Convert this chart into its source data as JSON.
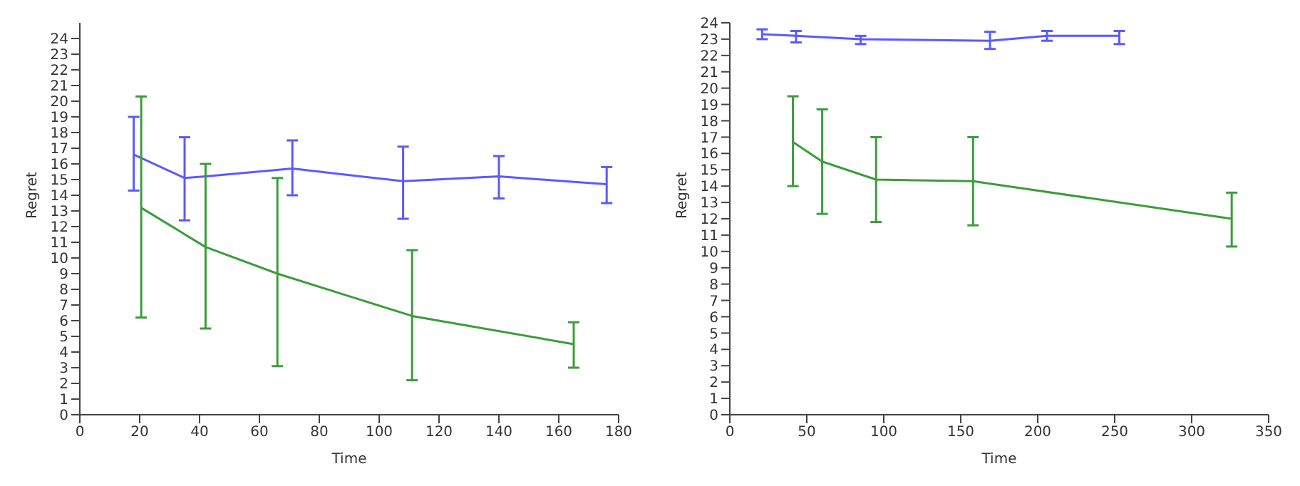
{
  "chart_data": [
    {
      "type": "line",
      "xlabel": "Time",
      "ylabel": "Regret",
      "xlim": [
        0,
        180
      ],
      "xticks": [
        0,
        20,
        40,
        60,
        80,
        100,
        120,
        140,
        160,
        180
      ],
      "ylim": [
        0,
        25
      ],
      "yticks": [
        0,
        1,
        2,
        3,
        4,
        5,
        6,
        7,
        8,
        9,
        10,
        11,
        12,
        13,
        14,
        15,
        16,
        17,
        18,
        19,
        20,
        21,
        22,
        23,
        24
      ],
      "grid": false,
      "marker": "none",
      "series": [
        {
          "color": "#5a5aff",
          "x": [
            18,
            35,
            42,
            71,
            108,
            140,
            176
          ],
          "values": [
            16.6,
            15.1,
            15.2,
            15.7,
            14.9,
            15.2,
            14.7
          ],
          "errors": [
            [
              14.3,
              19
            ],
            [
              12.4,
              17.7
            ],
            null,
            [
              14,
              17.5
            ],
            [
              12.5,
              17.1
            ],
            [
              13.8,
              16.5
            ],
            [
              13.5,
              15.8
            ]
          ]
        },
        {
          "color": "#3c9c3c",
          "x": [
            20.5,
            42,
            66,
            111,
            165
          ],
          "values": [
            13.2,
            10.7,
            9.0,
            6.3,
            4.5
          ],
          "errors": [
            [
              6.2,
              20.3
            ],
            [
              5.5,
              16
            ],
            [
              3.1,
              15.1
            ],
            [
              2.2,
              10.5
            ],
            [
              3,
              5.9
            ]
          ]
        }
      ]
    },
    {
      "type": "line",
      "xlabel": "Time",
      "ylabel": "Regret",
      "xlim": [
        0,
        350
      ],
      "xticks": [
        0,
        50,
        100,
        150,
        200,
        250,
        300,
        350
      ],
      "ylim": [
        0,
        24
      ],
      "yticks": [
        0,
        1,
        2,
        3,
        4,
        5,
        6,
        7,
        8,
        9,
        10,
        11,
        12,
        13,
        14,
        15,
        16,
        17,
        18,
        19,
        20,
        21,
        22,
        23,
        24
      ],
      "grid": false,
      "marker": "none",
      "series": [
        {
          "color": "#5a5aff",
          "x": [
            21,
            43,
            85,
            169,
            206,
            253
          ],
          "values": [
            23.3,
            23.2,
            23.0,
            22.9,
            23.2,
            23.2
          ],
          "errors": [
            [
              23,
              23.6
            ],
            [
              22.8,
              23.5
            ],
            [
              22.7,
              23.2
            ],
            [
              22.4,
              23.45
            ],
            [
              22.9,
              23.5
            ],
            [
              22.7,
              23.5
            ]
          ]
        },
        {
          "color": "#3c9c3c",
          "x": [
            41,
            60,
            95,
            158,
            326
          ],
          "values": [
            16.7,
            15.5,
            14.4,
            14.3,
            12.0
          ],
          "errors": [
            [
              14,
              19.5
            ],
            [
              12.3,
              18.7
            ],
            [
              11.8,
              17
            ],
            [
              11.6,
              17
            ],
            [
              10.3,
              13.6
            ]
          ]
        }
      ]
    }
  ]
}
